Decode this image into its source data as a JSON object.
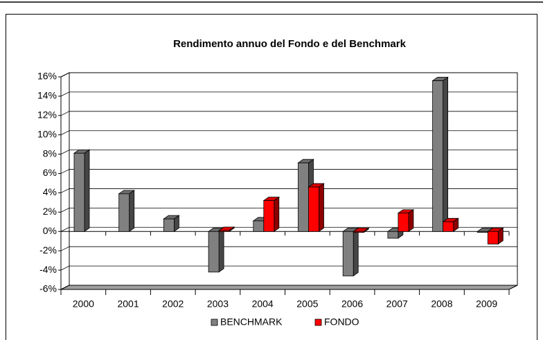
{
  "chart_data": {
    "type": "bar3d",
    "title": "Rendimento annuo del Fondo e del Benchmark",
    "categories": [
      "2000",
      "2001",
      "2002",
      "2003",
      "2004",
      "2005",
      "2006",
      "2007",
      "2008",
      "2009"
    ],
    "series": [
      {
        "name": "BENCHMARK",
        "color": "#808080",
        "values": [
          8.1,
          3.9,
          1.3,
          -4.2,
          1.1,
          7.1,
          -4.6,
          -0.7,
          15.6,
          -0.1
        ]
      },
      {
        "name": "FONDO",
        "color": "#ff0000",
        "values": [
          null,
          null,
          null,
          0.1,
          3.2,
          4.6,
          -0.1,
          1.9,
          1.0,
          -1.3
        ]
      }
    ],
    "ylim": [
      -6,
      16
    ],
    "yticks": [
      {
        "value": -6,
        "label": "-6%"
      },
      {
        "value": -4,
        "label": "-4%"
      },
      {
        "value": -2,
        "label": "-2%"
      },
      {
        "value": 0,
        "label": "0%"
      },
      {
        "value": 2,
        "label": "2%"
      },
      {
        "value": 4,
        "label": "4%"
      },
      {
        "value": 6,
        "label": "6%"
      },
      {
        "value": 8,
        "label": "8%"
      },
      {
        "value": 10,
        "label": "10%"
      },
      {
        "value": 12,
        "label": "12%"
      },
      {
        "value": 14,
        "label": "14%"
      },
      {
        "value": 16,
        "label": "16%"
      }
    ],
    "grid": true,
    "legend": "bottom"
  }
}
